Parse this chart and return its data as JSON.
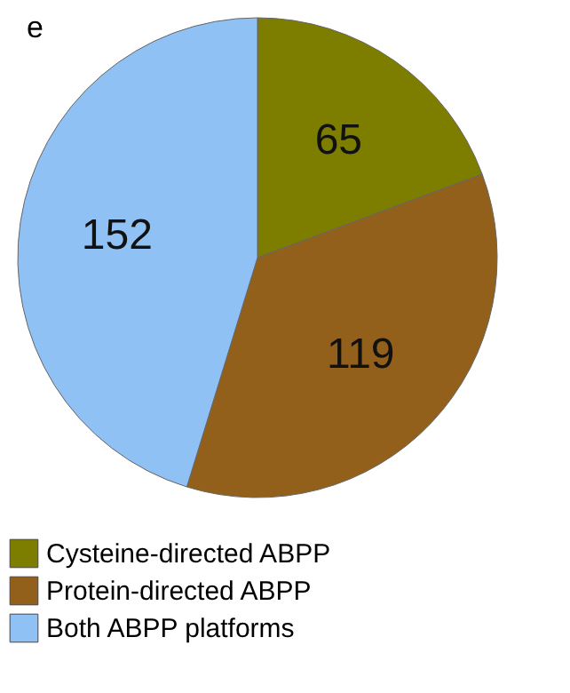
{
  "chart_data": {
    "type": "pie",
    "title": "e",
    "categories": [
      "Cysteine-directed ABPP",
      "Protein-directed ABPP",
      "Both ABPP platforms"
    ],
    "values": [
      65,
      119,
      152
    ],
    "colors": [
      "#7d7d00",
      "#93601c",
      "#8fc1f5"
    ],
    "data_labels": true,
    "legend": "bottom"
  }
}
